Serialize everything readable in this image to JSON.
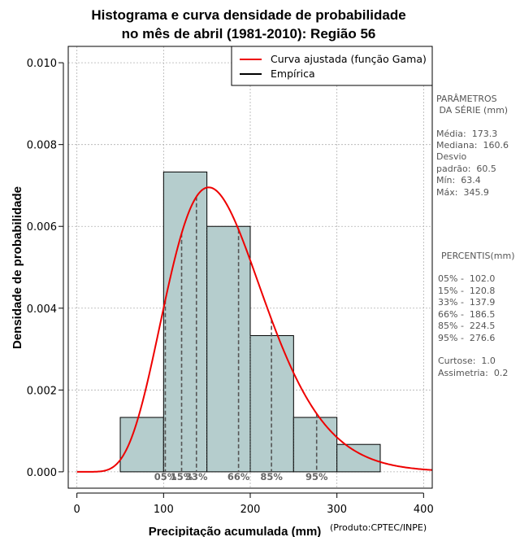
{
  "chart_data": {
    "type": "histogram",
    "title_lines": [
      "Histograma e curva densidade de probabilidade",
      "no mês de abril (1981-2010): Região 56"
    ],
    "xlabel": "Precipitação acumulada (mm)",
    "ylabel": "Densidade de probabilidade",
    "credit": "(Produto:CPTEC/INPE)",
    "xlim": [
      -10,
      410
    ],
    "ylim": [
      -0.0004,
      0.0104
    ],
    "x_ticks": [
      0,
      100,
      200,
      300,
      400
    ],
    "x_tick_labels": [
      "0",
      "100",
      "200",
      "300",
      "400"
    ],
    "y_ticks": [
      0,
      0.002,
      0.004,
      0.006,
      0.008,
      0.01
    ],
    "y_tick_labels": [
      "0.000",
      "0.002",
      "0.004",
      "0.006",
      "0.008",
      "0.010"
    ],
    "grid": true,
    "bins": [
      {
        "start": 50,
        "end": 100,
        "density": 0.00133
      },
      {
        "start": 100,
        "end": 150,
        "density": 0.00733
      },
      {
        "start": 150,
        "end": 200,
        "density": 0.006
      },
      {
        "start": 200,
        "end": 250,
        "density": 0.00333
      },
      {
        "start": 250,
        "end": 300,
        "density": 0.00133
      },
      {
        "start": 300,
        "end": 350,
        "density": 0.00067
      }
    ],
    "bar_color": "#b5cdcd",
    "gamma_curve": {
      "name": "Curva ajustada (função Gama)",
      "color": "#ee0000",
      "shape": 8.19,
      "scale": 21.15
    },
    "legend": {
      "placement": "top-right",
      "entries": [
        {
          "label": "Curva ajustada (função Gama)",
          "color": "#ee0000"
        },
        {
          "label": "Empírica",
          "color": "#000000"
        }
      ]
    },
    "percentiles": [
      {
        "label": "05%",
        "value": 102.0
      },
      {
        "label": "15%",
        "value": 120.8
      },
      {
        "label": "33%",
        "value": 137.9
      },
      {
        "label": "66%",
        "value": 186.5
      },
      {
        "label": "85%",
        "value": 224.5
      },
      {
        "label": "95%",
        "value": 276.6
      }
    ]
  },
  "side_panel": {
    "params_header": [
      "PARÂMETROS",
      " DA SÉRIE (mm)"
    ],
    "params": [
      "Média:  173.3",
      "Mediana:  160.6",
      "Desvio",
      "padrão:  60.5",
      "Mín:  63.4",
      "Máx:  345.9"
    ],
    "percentis_header": "PERCENTIS(mm)",
    "percentis": [
      "05% -  102.0",
      "15% -  120.8",
      "33% -  137.9",
      "66% -  186.5",
      "85% -  224.5",
      "95% -  276.6"
    ],
    "stats": [
      "Curtose:  1.0",
      "Assimetria:  0.2"
    ]
  }
}
